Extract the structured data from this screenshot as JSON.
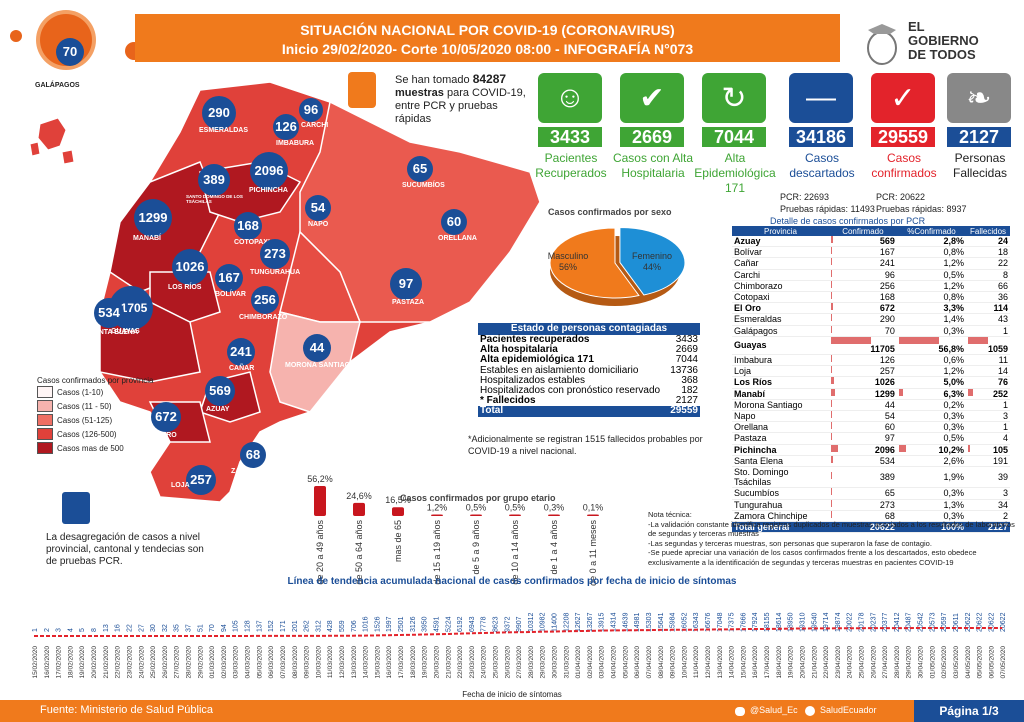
{
  "header": {
    "title": "SITUACIÓN NACIONAL POR  COVID-19 (CORONAVIRUS)",
    "subtitle": "Inicio 29/02/2020- Corte 10/05/2020 08:00  - INFOGRAFÍA N°073",
    "logo_text": [
      "EL",
      "GOBIERNO",
      "DE TODOS"
    ]
  },
  "tests": {
    "count": "84287",
    "text_before": "Se han tomado",
    "bold_after": "muestras",
    "text_after": "para COVID-19, entre PCR y pruebas rápidas"
  },
  "cards": [
    {
      "value": "3433",
      "label": "Pacientes Recuperados",
      "color": "#3fa535",
      "icon": "people-icon"
    },
    {
      "value": "2669",
      "label": "Casos con Alta Hospitalaria",
      "color": "#3fa535",
      "icon": "person-check-icon"
    },
    {
      "value": "7044",
      "label": "Alta Epidemiológica 171",
      "color": "#3fa535",
      "icon": "recycle-icon"
    },
    {
      "value": "34186",
      "label": "Casos descartados",
      "color": "#1b4e97",
      "icon": "minus-icon"
    },
    {
      "value": "29559",
      "label": "Casos confirmados",
      "color": "#e3232b",
      "icon": "check-icon"
    },
    {
      "value": "2127",
      "label": "Personas Fallecidas",
      "color": "#1b4e97",
      "icon": "ribbon-icon"
    }
  ],
  "card_label_colors": [
    "#3fa535",
    "#3fa535",
    "#3fa535",
    "#1b4e97",
    "#e3232b",
    "#222222"
  ],
  "descartados_detail": {
    "pcr": "PCR: 22693",
    "rapidas": "Pruebas rápidas: 11493"
  },
  "confirmados_detail": {
    "pcr": "PCR: 20622",
    "rapidas": "Pruebas rápidas: 8937"
  },
  "map": {
    "bubbles": [
      {
        "value": "70",
        "province": "GALÁPAGOS"
      },
      {
        "value": "290",
        "province": "ESMERALDAS"
      },
      {
        "value": "96",
        "province": "CARCHI"
      },
      {
        "value": "126",
        "province": "IMBABURA"
      },
      {
        "value": "2096",
        "province": "PICHINCHA"
      },
      {
        "value": "389",
        "province": "SANTO DOMINGO DE LOS TSÁCHILAS"
      },
      {
        "value": "65",
        "province": "SUCUMBÍOS"
      },
      {
        "value": "54",
        "province": "NAPO"
      },
      {
        "value": "60",
        "province": "ORELLANA"
      },
      {
        "value": "1299",
        "province": "MANABÍ"
      },
      {
        "value": "168",
        "province": "COTOPAXI"
      },
      {
        "value": "273",
        "province": "TUNGURAHUA"
      },
      {
        "value": "1026",
        "province": "LOS RÍOS"
      },
      {
        "value": "167",
        "province": "BOLÍVAR"
      },
      {
        "value": "97",
        "province": "PASTAZA"
      },
      {
        "value": "11705",
        "province": "GUAYAS"
      },
      {
        "value": "534",
        "province": "SANTA ELENA"
      },
      {
        "value": "256",
        "province": "CHIMBORAZO"
      },
      {
        "value": "241",
        "province": "CAÑAR"
      },
      {
        "value": "44",
        "province": "MORONA SANTIAGO"
      },
      {
        "value": "569",
        "province": "AZUAY"
      },
      {
        "value": "672",
        "province": "EL ORO"
      },
      {
        "value": "68",
        "province": "ZAMORA CHINCHIPE"
      },
      {
        "value": "257",
        "province": "LOJA"
      }
    ]
  },
  "legend": {
    "title": "Casos confirmados por provincia",
    "items": [
      {
        "label": "Casos (1-10)",
        "color": "#fff5f5"
      },
      {
        "label": "Casos (11 - 50)",
        "color": "#f6b3ae"
      },
      {
        "label": "Casos (51-125)",
        "color": "#ef6f64"
      },
      {
        "label": "Casos (126-500)",
        "color": "#e0413a"
      },
      {
        "label": "Casos mas de 500",
        "color": "#b01820"
      }
    ]
  },
  "note_left": "La desagregación de casos a nivel provincial, cantonal y tendecias son de pruebas PCR.",
  "sex_chart": {
    "title": "Casos confirmados por sexo",
    "slices": [
      {
        "label": "Masculino",
        "pct": "56%",
        "value": 56,
        "color": "#f07a1c"
      },
      {
        "label": "Femenino",
        "pct": "44%",
        "value": 44,
        "color": "#1e8fd6"
      }
    ]
  },
  "state_table": {
    "header": "Estado de personas contagiadas",
    "rows": [
      {
        "label": "Pacientes recuperados",
        "value": "3433",
        "bold": true
      },
      {
        "label": "Alta hospitalaria",
        "value": "2669",
        "bold": true
      },
      {
        "label": "Alta epidemiológica 171",
        "value": "7044",
        "bold": true
      },
      {
        "label": "Estables en aislamiento domiciliario",
        "value": "13736",
        "bold": false
      },
      {
        "label": "Hospitalizados estables",
        "value": "368",
        "bold": false
      },
      {
        "label": "Hospitalizados con pronóstico reservado",
        "value": "182",
        "bold": false
      },
      {
        "label": "* Fallecidos",
        "value": "2127",
        "bold": true
      }
    ],
    "total_label": "Total",
    "total_value": "29559",
    "footnote": "*Adicionalmente se registran  1515 fallecidos probables por COVID-19 a nivel nacional."
  },
  "prov_table": {
    "title": "Detalle de casos confirmados por PCR",
    "columns": [
      "Provincia",
      "Confirmado",
      "%Confirmado",
      "Fallecidos"
    ],
    "rows": [
      [
        "Azuay",
        "569",
        "2,8%",
        "24",
        true,
        2.8
      ],
      [
        "Bolívar",
        "167",
        "0,8%",
        "18",
        false,
        0.8
      ],
      [
        "Cañar",
        "241",
        "1,2%",
        "22",
        false,
        1.2
      ],
      [
        "Carchi",
        "96",
        "0,5%",
        "8",
        false,
        0.5
      ],
      [
        "Chimborazo",
        "256",
        "1,2%",
        "66",
        false,
        1.2
      ],
      [
        "Cotopaxi",
        "168",
        "0,8%",
        "36",
        false,
        0.8
      ],
      [
        "El Oro",
        "672",
        "3,3%",
        "114",
        true,
        3.3
      ],
      [
        "Esmeraldas",
        "290",
        "1,4%",
        "43",
        false,
        1.4
      ],
      [
        "Galápagos",
        "70",
        "0,3%",
        "1",
        false,
        0.3
      ],
      [
        "Guayas",
        "11705",
        "56,8%",
        "1059",
        true,
        56.8
      ],
      [
        "Imbabura",
        "126",
        "0,6%",
        "11",
        false,
        0.6
      ],
      [
        "Loja",
        "257",
        "1,2%",
        "14",
        false,
        1.2
      ],
      [
        "Los Ríos",
        "1026",
        "5,0%",
        "76",
        true,
        5.0
      ],
      [
        "Manabí",
        "1299",
        "6,3%",
        "252",
        true,
        6.3
      ],
      [
        "Morona Santiago",
        "44",
        "0,2%",
        "1",
        false,
        0.2
      ],
      [
        "Napo",
        "54",
        "0,3%",
        "3",
        false,
        0.3
      ],
      [
        "Orellana",
        "60",
        "0,3%",
        "1",
        false,
        0.3
      ],
      [
        "Pastaza",
        "97",
        "0,5%",
        "4",
        false,
        0.5
      ],
      [
        "Pichincha",
        "2096",
        "10,2%",
        "105",
        true,
        10.2
      ],
      [
        "Santa Elena",
        "534",
        "2,6%",
        "191",
        false,
        2.6
      ],
      [
        "Sto. Domingo Tsáchilas",
        "389",
        "1,9%",
        "39",
        false,
        1.9
      ],
      [
        "Sucumbíos",
        "65",
        "0,3%",
        "3",
        false,
        0.3
      ],
      [
        "Tungurahua",
        "273",
        "1,3%",
        "34",
        false,
        1.3
      ],
      [
        "Zamora Chinchipe",
        "68",
        "0,3%",
        "2",
        false,
        0.3
      ]
    ],
    "total": [
      "Total general",
      "20622",
      "100%",
      "2127"
    ]
  },
  "nota_tecnica": {
    "title": "Nota técnica:",
    "lines": [
      "-La validación constante identifica registros duplicados de muestras asociados a los resultados de laboratorios de segundas y terceras muestras",
      "-Las segundas y terceras muestras, son personas que superaron la fase de contagio.",
      "-Se puede apreciar una variación de los casos confirmados frente a los descartados, esto obedece exclusivamente a la identificación de segundas y terceras muestras en pacientes COVID-19"
    ]
  },
  "chart_data": [
    {
      "type": "bar",
      "title": "Casos confirmados por grupo etario",
      "categories": [
        "de 20 a 49 años",
        "de 50 a 64 años",
        "mas de 65",
        "de 15 a 19 años",
        "de 5 a 9 años",
        "de 10 a 14 años",
        "de 1 a 4 años",
        "de 0 a 11 meses"
      ],
      "values": [
        56.2,
        24.6,
        16.5,
        1.2,
        0.5,
        0.5,
        0.3,
        0.1
      ],
      "labels": [
        "56,2%",
        "24,6%",
        "16,5%",
        "1,2%",
        "0,5%",
        "0,5%",
        "0,3%",
        "0,1%"
      ]
    },
    {
      "type": "line",
      "title": "Línea de tendencia acumulada nacional de casos confirmados por fecha de inicio de síntomas",
      "xlabel": "Fecha de inicio de síntomas",
      "x": [
        "15/02/2020",
        "16/02/2020",
        "17/02/2020",
        "18/02/2020",
        "19/02/2020",
        "20/02/2020",
        "21/02/2020",
        "22/02/2020",
        "23/02/2020",
        "24/02/2020",
        "25/02/2020",
        "26/02/2020",
        "27/02/2020",
        "28/02/2020",
        "29/02/2020",
        "01/03/2020",
        "02/03/2020",
        "03/03/2020",
        "04/03/2020",
        "05/03/2020",
        "06/03/2020",
        "07/03/2020",
        "08/03/2020",
        "09/03/2020",
        "10/03/2020",
        "11/03/2020",
        "12/03/2020",
        "13/03/2020",
        "14/03/2020",
        "15/03/2020",
        "16/03/2020",
        "17/03/2020",
        "18/03/2020",
        "19/03/2020",
        "20/03/2020",
        "21/03/2020",
        "22/03/2020",
        "23/03/2020",
        "24/03/2020",
        "25/03/2020",
        "26/03/2020",
        "27/03/2020",
        "28/03/2020",
        "29/03/2020",
        "30/03/2020",
        "31/03/2020",
        "01/04/2020",
        "02/04/2020",
        "03/04/2020",
        "04/04/2020",
        "05/04/2020",
        "06/04/2020",
        "07/04/2020",
        "08/04/2020",
        "09/04/2020",
        "10/04/2020",
        "11/04/2020",
        "12/04/2020",
        "13/04/2020",
        "14/04/2020",
        "15/04/2020",
        "16/04/2020",
        "17/04/2020",
        "18/04/2020",
        "19/04/2020",
        "20/04/2020",
        "21/04/2020",
        "22/04/2020",
        "23/04/2020",
        "24/04/2020",
        "25/04/2020",
        "26/04/2020",
        "27/04/2020",
        "28/04/2020",
        "29/04/2020",
        "30/04/2020",
        "01/05/2020",
        "02/05/2020",
        "03/05/2020",
        "04/05/2020",
        "05/05/2020",
        "06/05/2020",
        "07/05/2020"
      ],
      "values": [
        1,
        2,
        3,
        4,
        5,
        8,
        13,
        16,
        22,
        27,
        30,
        32,
        35,
        37,
        51,
        70,
        94,
        105,
        128,
        137,
        152,
        171,
        201,
        262,
        312,
        428,
        559,
        706,
        1016,
        1526,
        1997,
        2501,
        3126,
        3950,
        4591,
        5224,
        6192,
        6943,
        7778,
        8623,
        9372,
        9907,
        10312,
        10982,
        11400,
        12208,
        12627,
        13267,
        13915,
        14314,
        14639,
        14981,
        15303,
        15641,
        15984,
        16052,
        16343,
        16676,
        17048,
        17375,
        17666,
        17924,
        18155,
        18614,
        18950,
        19310,
        19540,
        19714,
        19874,
        20022,
        20178,
        20237,
        20377,
        20412,
        20487,
        20542,
        20573,
        20597,
        20611,
        20622,
        20622,
        20622,
        20622
      ]
    }
  ],
  "footer": {
    "source": "Fuente: Ministerio de Salud Pública",
    "twitter": "@Salud_Ec",
    "facebook": "SaludEcuador",
    "page": "Página 1/3"
  }
}
